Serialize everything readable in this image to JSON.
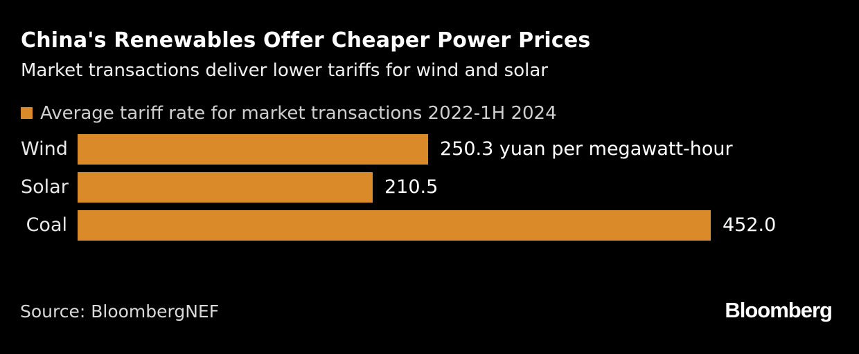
{
  "page": {
    "background": "#000000",
    "title": "China's Renewables Offer Cheaper Power Prices",
    "subtitle": "Market transactions deliver lower tariffs for wind and solar",
    "source": "Source: BloombergNEF",
    "brand": "Bloomberg"
  },
  "legend": {
    "swatch_color": "#db8a2a",
    "label": "Average tariff rate for market transactions 2022-1H 2024"
  },
  "chart_data": {
    "type": "bar",
    "orientation": "horizontal",
    "title": "China's Renewables Offer Cheaper Power Prices",
    "subtitle": "Market transactions deliver lower tariffs for wind and solar",
    "legend_entries": [
      "Average tariff rate for market transactions 2022-1H 2024"
    ],
    "categories": [
      "Wind",
      "Solar",
      "Coal"
    ],
    "values": [
      250.3,
      210.5,
      452.0
    ],
    "value_labels": [
      "250.3 yuan per megawatt-hour",
      "210.5",
      "452.0"
    ],
    "unit": "yuan per megawatt-hour",
    "xlim": [
      0,
      452.0
    ],
    "grid": "off",
    "bar_color": "#db8a2a",
    "background_color": "#000000",
    "source": "Source: BloombergNEF"
  }
}
